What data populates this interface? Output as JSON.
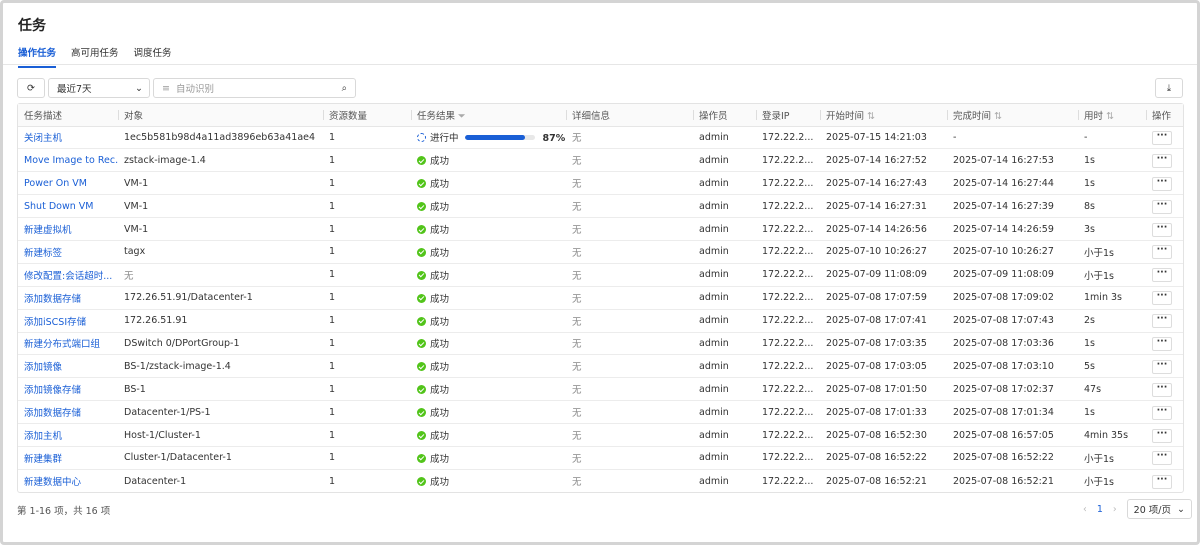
{
  "header": {
    "title": "任务"
  },
  "tabs": [
    "操作任务",
    "高可用任务",
    "调度任务"
  ],
  "toolbar": {
    "range": "最近7天",
    "search_placeholder": "自动识别"
  },
  "table": {
    "columns": [
      "任务描述",
      "对象",
      "资源数量",
      "任务结果",
      "详细信息",
      "操作员",
      "登录IP",
      "开始时间",
      "完成时间",
      "用时",
      "操作"
    ],
    "rows": [
      {
        "task": "关闭主机",
        "object": "1ec5b581b98d4a11ad3896eb63a41ae4",
        "count": 1,
        "result": "进行中",
        "progress": 87,
        "progress_label": "87%",
        "detail": "无",
        "operator": "admin",
        "ip": "172.22.2...",
        "start": "2025-07-15 14:21:03",
        "end": "-",
        "duration": "-"
      },
      {
        "task": "Move Image to Rec...",
        "object": "zstack-image-1.4",
        "count": 1,
        "result": "成功",
        "detail": "无",
        "operator": "admin",
        "ip": "172.22.2...",
        "start": "2025-07-14 16:27:52",
        "end": "2025-07-14 16:27:53",
        "duration": "1s"
      },
      {
        "task": "Power On VM",
        "object": "VM-1",
        "count": 1,
        "result": "成功",
        "detail": "无",
        "operator": "admin",
        "ip": "172.22.2...",
        "start": "2025-07-14 16:27:43",
        "end": "2025-07-14 16:27:44",
        "duration": "1s"
      },
      {
        "task": "Shut Down VM",
        "object": "VM-1",
        "count": 1,
        "result": "成功",
        "detail": "无",
        "operator": "admin",
        "ip": "172.22.2...",
        "start": "2025-07-14 16:27:31",
        "end": "2025-07-14 16:27:39",
        "duration": "8s"
      },
      {
        "task": "新建虚拟机",
        "object": "VM-1",
        "count": 1,
        "result": "成功",
        "detail": "无",
        "operator": "admin",
        "ip": "172.22.2...",
        "start": "2025-07-14 14:26:56",
        "end": "2025-07-14 14:26:59",
        "duration": "3s"
      },
      {
        "task": "新建标签",
        "object": "tagx",
        "count": 1,
        "result": "成功",
        "detail": "无",
        "operator": "admin",
        "ip": "172.22.2...",
        "start": "2025-07-10 10:26:27",
        "end": "2025-07-10 10:26:27",
        "duration": "小于1s"
      },
      {
        "task": "修改配置:会话超时...",
        "object": "无",
        "count": 1,
        "result": "成功",
        "detail": "无",
        "operator": "admin",
        "ip": "172.22.2...",
        "start": "2025-07-09 11:08:09",
        "end": "2025-07-09 11:08:09",
        "duration": "小于1s"
      },
      {
        "task": "添加数据存储",
        "object": "172.26.51.91/Datacenter-1",
        "count": 1,
        "result": "成功",
        "detail": "无",
        "operator": "admin",
        "ip": "172.22.2...",
        "start": "2025-07-08 17:07:59",
        "end": "2025-07-08 17:09:02",
        "duration": "1min 3s"
      },
      {
        "task": "添加iSCSI存储",
        "object": "172.26.51.91",
        "count": 1,
        "result": "成功",
        "detail": "无",
        "operator": "admin",
        "ip": "172.22.2...",
        "start": "2025-07-08 17:07:41",
        "end": "2025-07-08 17:07:43",
        "duration": "2s"
      },
      {
        "task": "新建分布式端口组",
        "object": "DSwitch 0/DPortGroup-1",
        "count": 1,
        "result": "成功",
        "detail": "无",
        "operator": "admin",
        "ip": "172.22.2...",
        "start": "2025-07-08 17:03:35",
        "end": "2025-07-08 17:03:36",
        "duration": "1s"
      },
      {
        "task": "添加镜像",
        "object": "BS-1/zstack-image-1.4",
        "count": 1,
        "result": "成功",
        "detail": "无",
        "operator": "admin",
        "ip": "172.22.2...",
        "start": "2025-07-08 17:03:05",
        "end": "2025-07-08 17:03:10",
        "duration": "5s"
      },
      {
        "task": "添加镜像存储",
        "object": "BS-1",
        "count": 1,
        "result": "成功",
        "detail": "无",
        "operator": "admin",
        "ip": "172.22.2...",
        "start": "2025-07-08 17:01:50",
        "end": "2025-07-08 17:02:37",
        "duration": "47s"
      },
      {
        "task": "添加数据存储",
        "object": "Datacenter-1/PS-1",
        "count": 1,
        "result": "成功",
        "detail": "无",
        "operator": "admin",
        "ip": "172.22.2...",
        "start": "2025-07-08 17:01:33",
        "end": "2025-07-08 17:01:34",
        "duration": "1s"
      },
      {
        "task": "添加主机",
        "object": "Host-1/Cluster-1",
        "count": 1,
        "result": "成功",
        "detail": "无",
        "operator": "admin",
        "ip": "172.22.2...",
        "start": "2025-07-08 16:52:30",
        "end": "2025-07-08 16:57:05",
        "duration": "4min 35s"
      },
      {
        "task": "新建集群",
        "object": "Cluster-1/Datacenter-1",
        "count": 1,
        "result": "成功",
        "detail": "无",
        "operator": "admin",
        "ip": "172.22.2...",
        "start": "2025-07-08 16:52:22",
        "end": "2025-07-08 16:52:22",
        "duration": "小于1s"
      },
      {
        "task": "新建数据中心",
        "object": "Datacenter-1",
        "count": 1,
        "result": "成功",
        "detail": "无",
        "operator": "admin",
        "ip": "172.22.2...",
        "start": "2025-07-08 16:52:21",
        "end": "2025-07-08 16:52:21",
        "duration": "小于1s"
      }
    ]
  },
  "footer": {
    "summary": "第 1-16 项，共 16 项",
    "page": "1",
    "page_size": "20 项/页"
  }
}
